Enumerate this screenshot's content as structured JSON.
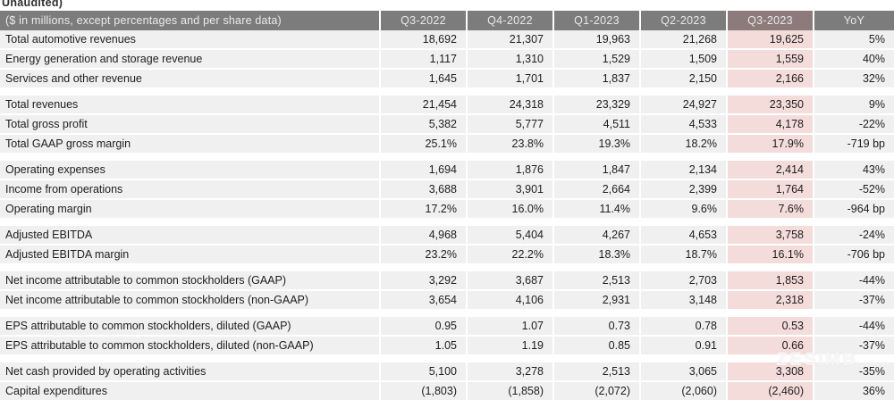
{
  "meta": {
    "unaudited_label": "Unaudited)"
  },
  "watermark": {
    "text": "ZESIMB"
  },
  "colors": {
    "header_bg": "#7c7c7c",
    "header_highlight_bg": "#8d7b7b",
    "row_bg": "#f0f0f0",
    "highlight_cell_bg": "#f4dcda",
    "header_text": "#ebebeb",
    "body_text": "#1d1d1d"
  },
  "table": {
    "header": {
      "label": "($ in millions, except percentages and per share data)",
      "columns": [
        "Q3-2022",
        "Q4-2022",
        "Q1-2023",
        "Q2-2023",
        "Q3-2023",
        "YoY"
      ],
      "highlight_column": "Q3-2023"
    },
    "sections": [
      {
        "rows": [
          {
            "label": "Total automotive revenues",
            "values": [
              "18,692",
              "21,307",
              "19,963",
              "21,268",
              "19,625",
              "5%"
            ]
          },
          {
            "label": "Energy generation and storage revenue",
            "values": [
              "1,117",
              "1,310",
              "1,529",
              "1,509",
              "1,559",
              "40%"
            ]
          },
          {
            "label": "Services and other revenue",
            "values": [
              "1,645",
              "1,701",
              "1,837",
              "2,150",
              "2,166",
              "32%"
            ]
          }
        ]
      },
      {
        "rows": [
          {
            "label": "Total revenues",
            "values": [
              "21,454",
              "24,318",
              "23,329",
              "24,927",
              "23,350",
              "9%"
            ]
          },
          {
            "label": "Total gross profit",
            "values": [
              "5,382",
              "5,777",
              "4,511",
              "4,533",
              "4,178",
              "-22%"
            ]
          },
          {
            "label": "Total GAAP gross margin",
            "values": [
              "25.1%",
              "23.8%",
              "19.3%",
              "18.2%",
              "17.9%",
              "-719 bp"
            ]
          }
        ]
      },
      {
        "rows": [
          {
            "label": "Operating expenses",
            "values": [
              "1,694",
              "1,876",
              "1,847",
              "2,134",
              "2,414",
              "43%"
            ]
          },
          {
            "label": "Income from operations",
            "values": [
              "3,688",
              "3,901",
              "2,664",
              "2,399",
              "1,764",
              "-52%"
            ]
          },
          {
            "label": "Operating margin",
            "values": [
              "17.2%",
              "16.0%",
              "11.4%",
              "9.6%",
              "7.6%",
              "-964 bp"
            ]
          }
        ]
      },
      {
        "rows": [
          {
            "label": "Adjusted EBITDA",
            "values": [
              "4,968",
              "5,404",
              "4,267",
              "4,653",
              "3,758",
              "-24%"
            ]
          },
          {
            "label": "Adjusted EBITDA margin",
            "values": [
              "23.2%",
              "22.2%",
              "18.3%",
              "18.7%",
              "16.1%",
              "-706 bp"
            ]
          }
        ]
      },
      {
        "rows": [
          {
            "label": "Net income attributable to common stockholders (GAAP)",
            "values": [
              "3,292",
              "3,687",
              "2,513",
              "2,703",
              "1,853",
              "-44%"
            ]
          },
          {
            "label": "Net income attributable to common stockholders (non-GAAP)",
            "values": [
              "3,654",
              "4,106",
              "2,931",
              "3,148",
              "2,318",
              "-37%"
            ]
          }
        ]
      },
      {
        "rows": [
          {
            "label": "EPS attributable to common stockholders, diluted (GAAP)",
            "values": [
              "0.95",
              "1.07",
              "0.73",
              "0.78",
              "0.53",
              "-44%"
            ]
          },
          {
            "label": "EPS attributable to common stockholders, diluted (non-GAAP)",
            "values": [
              "1.05",
              "1.19",
              "0.85",
              "0.91",
              "0.66",
              "-37%"
            ]
          }
        ]
      },
      {
        "rows": [
          {
            "label": "Net cash provided by operating activities",
            "values": [
              "5,100",
              "3,278",
              "2,513",
              "3,065",
              "3,308",
              "-35%"
            ]
          },
          {
            "label": "Capital expenditures",
            "values": [
              "(1,803)",
              "(1,858)",
              "(2,072)",
              "(2,060)",
              "(2,460)",
              "36%"
            ]
          }
        ]
      }
    ]
  }
}
